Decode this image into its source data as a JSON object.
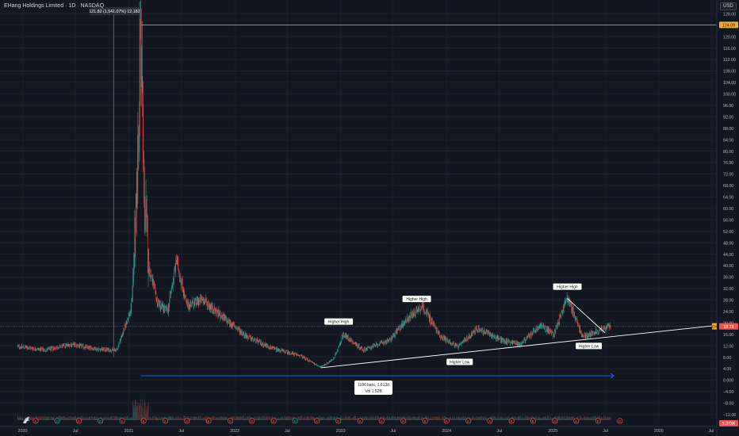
{
  "header": {
    "symbol_title": "EHang Holdings Limited · 1D · NASDAQ",
    "currency": "USD"
  },
  "colors": {
    "background": "#131722",
    "up": "#26a69a",
    "down": "#ef5350",
    "orange_line": "#f7a928",
    "blue_measure": "#2962ff",
    "trendline": "#ffffff",
    "current_price_line": "#f7725a"
  },
  "chart_data": {
    "type": "candlestick",
    "x_axis_labels": [
      "2020",
      "Jul",
      "2021",
      "Jul",
      "2022",
      "Jul",
      "2023",
      "Jul",
      "2024",
      "Jul",
      "2025",
      "Jul",
      "2026",
      "Jul"
    ],
    "y_axis_labels": [
      "128.00",
      "124.00",
      "120.00",
      "116.00",
      "112.00",
      "108.00",
      "104.00",
      "100.00",
      "96.00",
      "92.00",
      "88.00",
      "84.00",
      "80.00",
      "76.00",
      "72.00",
      "68.00",
      "64.00",
      "60.00",
      "56.00",
      "52.00",
      "48.00",
      "44.00",
      "40.00",
      "36.00",
      "32.00",
      "28.00",
      "24.00",
      "20.00",
      "16.00",
      "12.00",
      "8.00",
      "4.00",
      "0.000",
      "−4.00",
      "−8.00",
      "−12.00"
    ],
    "ylim": [
      -14,
      130
    ],
    "xlim": [
      "2019-10-15",
      "2026-07-20"
    ],
    "horizontal_level": 124.09,
    "horizontal_level_label": "124.09",
    "current_price": 18.78,
    "current_price_label": "18.78",
    "current_price_label_prefix": "EH",
    "volume_label": "5.373K",
    "anchor_points": [
      {
        "date": "2019-12-15",
        "close": 11.8
      },
      {
        "date": "2020-03-20",
        "close": 10.5
      },
      {
        "date": "2020-06-15",
        "close": 12.5
      },
      {
        "date": "2020-09-15",
        "close": 10.8
      },
      {
        "date": "2020-11-20",
        "close": 10.4
      },
      {
        "date": "2020-12-10",
        "close": 16.0
      },
      {
        "date": "2021-01-10",
        "close": 25.0
      },
      {
        "date": "2021-01-28",
        "close": 60.0
      },
      {
        "date": "2021-02-12",
        "close": 124.0
      },
      {
        "date": "2021-02-22",
        "close": 68.0
      },
      {
        "date": "2021-03-10",
        "close": 40.0
      },
      {
        "date": "2021-04-10",
        "close": 27.0
      },
      {
        "date": "2021-05-15",
        "close": 24.0
      },
      {
        "date": "2021-06-15",
        "close": 42.0
      },
      {
        "date": "2021-07-20",
        "close": 26.0
      },
      {
        "date": "2021-09-15",
        "close": 28.0
      },
      {
        "date": "2021-11-20",
        "close": 22.0
      },
      {
        "date": "2022-02-15",
        "close": 15.0
      },
      {
        "date": "2022-05-15",
        "close": 11.0
      },
      {
        "date": "2022-08-15",
        "close": 8.5
      },
      {
        "date": "2022-10-25",
        "close": 4.5
      },
      {
        "date": "2022-12-10",
        "close": 7.5
      },
      {
        "date": "2023-01-10",
        "close": 16.0
      },
      {
        "date": "2023-03-20",
        "close": 10.5
      },
      {
        "date": "2023-06-20",
        "close": 14.0
      },
      {
        "date": "2023-08-15",
        "close": 21.0
      },
      {
        "date": "2023-10-10",
        "close": 26.0
      },
      {
        "date": "2023-12-10",
        "close": 15.5
      },
      {
        "date": "2024-02-10",
        "close": 11.5
      },
      {
        "date": "2024-04-15",
        "close": 18.0
      },
      {
        "date": "2024-07-10",
        "close": 14.0
      },
      {
        "date": "2024-09-10",
        "close": 12.5
      },
      {
        "date": "2024-11-20",
        "close": 19.0
      },
      {
        "date": "2025-01-05",
        "close": 16.0
      },
      {
        "date": "2025-02-20",
        "close": 29.0
      },
      {
        "date": "2025-04-15",
        "close": 15.0
      },
      {
        "date": "2025-06-10",
        "close": 17.5
      },
      {
        "date": "2025-07-20",
        "close": 18.78
      }
    ],
    "annotations": [
      {
        "text": "Higher High",
        "date": "2022-12-25",
        "value": 20.3
      },
      {
        "text": "Higher High",
        "date": "2023-09-20",
        "value": 28.2
      },
      {
        "text": "Higher High",
        "date": "2025-02-20",
        "value": 32.5
      },
      {
        "text": "Higher Low",
        "date": "2024-02-15",
        "value": 6.2
      },
      {
        "text": "Higher Low",
        "date": "2025-05-05",
        "value": 11.8
      }
    ],
    "trendlines": [
      {
        "from": {
          "date": "2022-10-25",
          "value": 4.3
        },
        "to": {
          "date": "2026-07-10",
          "value": 19.0
        }
      },
      {
        "from": {
          "date": "2025-02-20",
          "value": 28.5
        },
        "to": {
          "date": "2025-06-30",
          "value": 16.5
        }
      }
    ],
    "measure_vertical": {
      "date": "2020-11-10",
      "from_value": 8.0,
      "to_value": 130.0,
      "label": "121.82 (1,541.07%) 12,182"
    },
    "measure_horizontal": {
      "from_date": "2021-02-12",
      "to_date": "2025-07-30",
      "value": 1.5,
      "label_line1": "1106 bars, 1,613d",
      "label_line2": "Vol 1.52B"
    },
    "event_markers": [
      "E",
      "D",
      "E",
      "D",
      "E",
      "E",
      "E",
      "E",
      "E",
      "E",
      "E",
      "E",
      "D",
      "E",
      "E",
      "E",
      "E",
      "E",
      "E",
      "E",
      "E",
      "E",
      "E",
      "E",
      "E",
      "E",
      "E",
      "E"
    ]
  }
}
